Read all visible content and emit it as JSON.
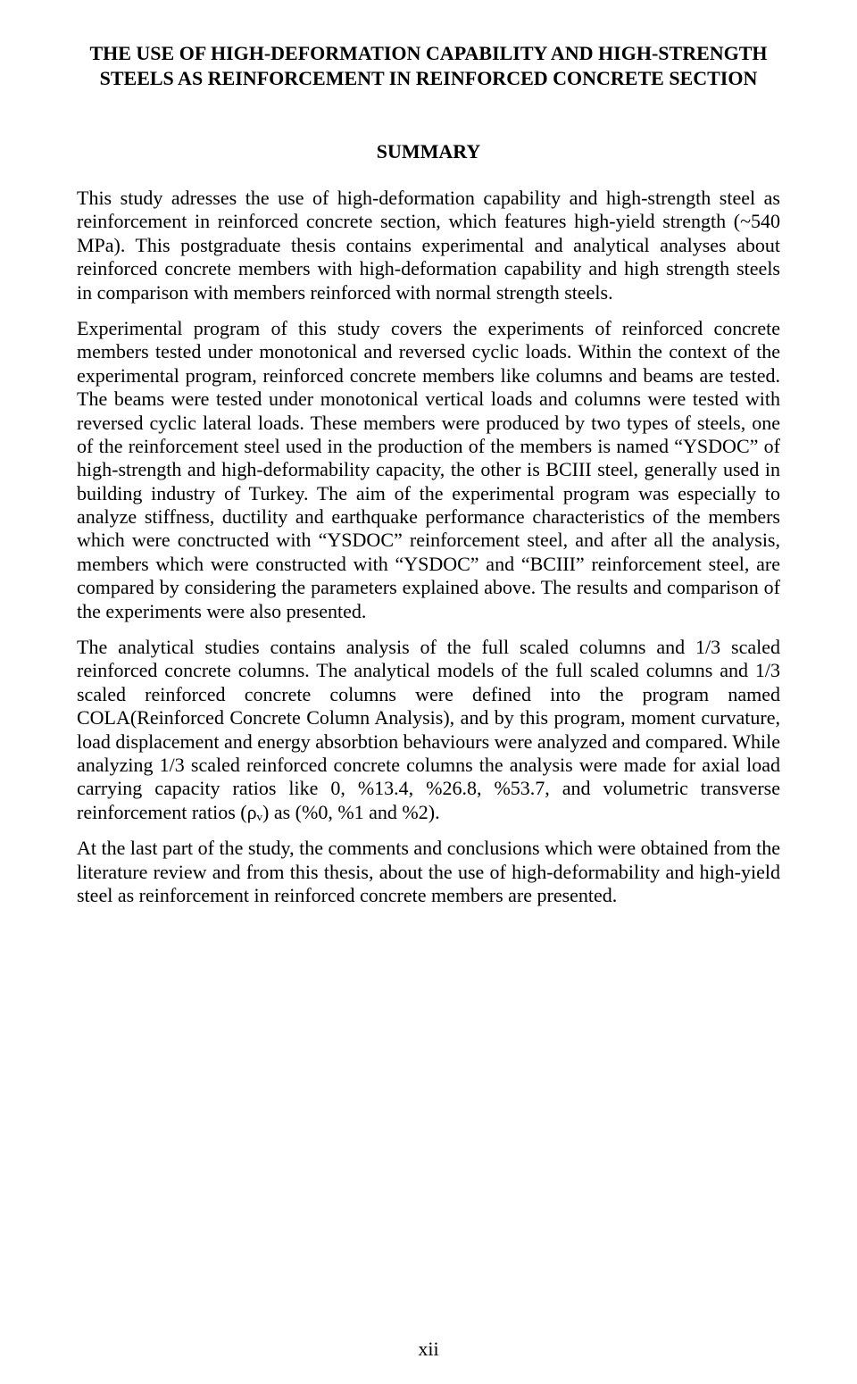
{
  "title": "THE USE OF HIGH-DEFORMATION CAPABILITY AND HIGH-STRENGTH STEELS AS REINFORCEMENT IN REINFORCED CONCRETE SECTION",
  "heading": "SUMMARY",
  "paragraphs": {
    "p1": "This study adresses the use of high-deformation capability and high-strength steel as reinforcement in reinforced concrete section, which features high-yield strength (~540 MPa). This postgraduate thesis contains experimental and analytical analyses about reinforced concrete members with high-deformation capability and high strength steels in comparison with members reinforced with normal strength steels.",
    "p2": "Experimental program of this study covers the experiments of reinforced concrete members tested under monotonical and reversed cyclic loads. Within the context of the experimental program, reinforced concrete members like columns and beams are tested. The beams were tested under monotonical vertical loads and columns were tested with reversed cyclic lateral loads. These members were produced by two types of steels, one of the reinforcement steel used in the production of the members is named “YSDOC” of high-strength and high-deformability capacity, the other is BCIII steel, generally used in building industry of Turkey. The aim of the experimental program was especially to analyze stiffness, ductility and earthquake performance characteristics of the members which were conctructed with “YSDOC” reinforcement steel, and after all the analysis, members which were constructed with “YSDOC” and “BCIII” reinforcement steel, are compared by considering the parameters explained above. The results and comparison of the experiments were also presented.",
    "p3": "The analytical studies contains analysis of the full scaled columns and 1/3 scaled reinforced concrete columns. The analytical models of the full scaled columns and 1/3 scaled reinforced concrete columns were defined into the program named COLA(Reinforced Concrete Column Analysis), and by this program, moment curvature, load displacement and energy absorbtion behaviours were analyzed and compared. While analyzing 1/3 scaled reinforced concrete columns the analysis were made for axial load carrying capacity ratios like 0, %13.4, %26.8, %53.7, and volumetric transverse reinforcement ratios (ρᵥ) as (%0, %1 and %2).",
    "p4": "At the last part of the study, the comments and conclusions which were obtained from the literature review and from this thesis, about the use of high-deformability and high-yield steel as reinforcement in reinforced concrete members are presented."
  },
  "page_number": "xii"
}
